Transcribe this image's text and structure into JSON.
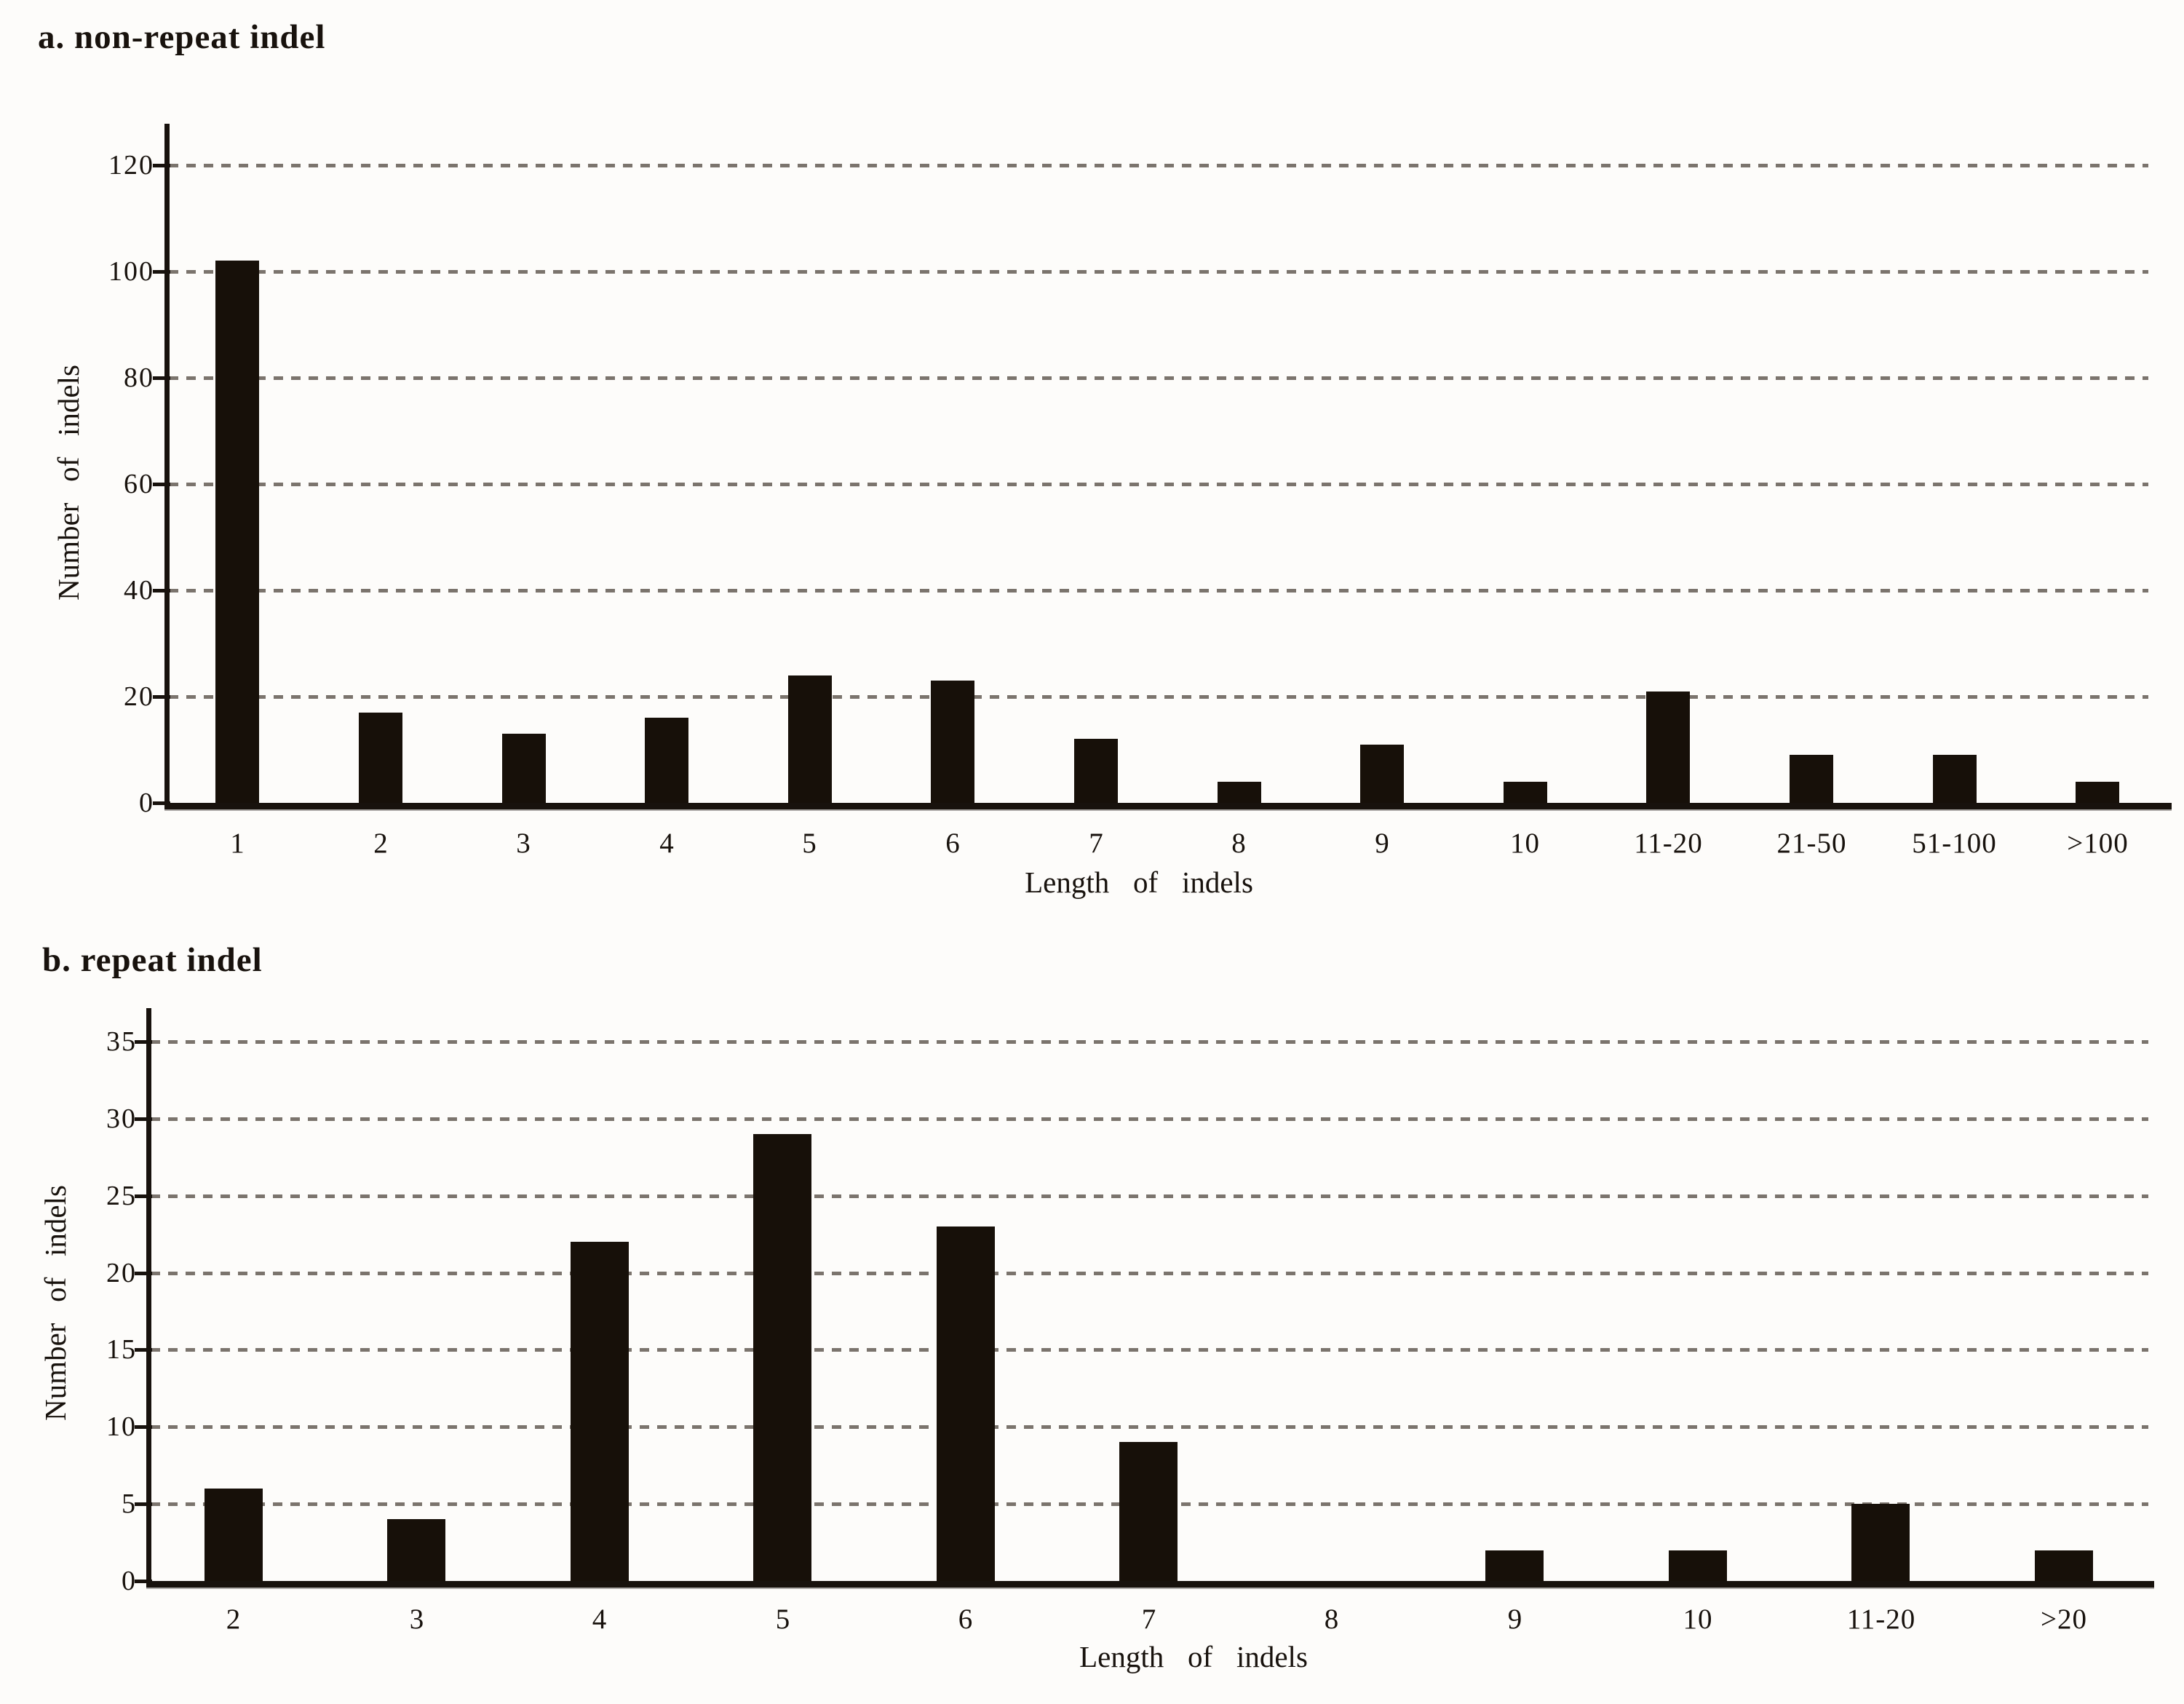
{
  "figure": {
    "background": "#fdfcfa"
  },
  "colors": {
    "bar": "#171009",
    "grid_dash": "#7b746d",
    "axis": "#18120d",
    "text": "#18120d"
  },
  "chart_data": [
    {
      "id": "a",
      "type": "bar",
      "title": "a. non-repeat indel",
      "xlabel": "Length of indels",
      "ylabel": "Number of indels",
      "categories": [
        "1",
        "2",
        "3",
        "4",
        "5",
        "6",
        "7",
        "8",
        "9",
        "10",
        "11-20",
        "21-50",
        "51-100",
        ">100"
      ],
      "values": [
        102,
        17,
        13,
        16,
        24,
        23,
        12,
        4,
        11,
        4,
        21,
        9,
        9,
        4
      ],
      "yticks": [
        0,
        20,
        40,
        60,
        80,
        100,
        120
      ],
      "ylim": [
        0,
        120
      ],
      "grid": "dashed-horizontal",
      "legend": "none"
    },
    {
      "id": "b",
      "type": "bar",
      "title": "b. repeat indel",
      "xlabel": "Length of indels",
      "ylabel": "Number of indels",
      "categories": [
        "2",
        "3",
        "4",
        "5",
        "6",
        "7",
        "8",
        "9",
        "10",
        "11-20",
        ">20"
      ],
      "values": [
        6,
        4,
        22,
        29,
        23,
        9,
        0,
        2,
        2,
        5,
        2
      ],
      "yticks": [
        0,
        5,
        10,
        15,
        20,
        25,
        30,
        35
      ],
      "ylim": [
        0,
        35
      ],
      "grid": "dashed-horizontal",
      "legend": "none"
    }
  ]
}
